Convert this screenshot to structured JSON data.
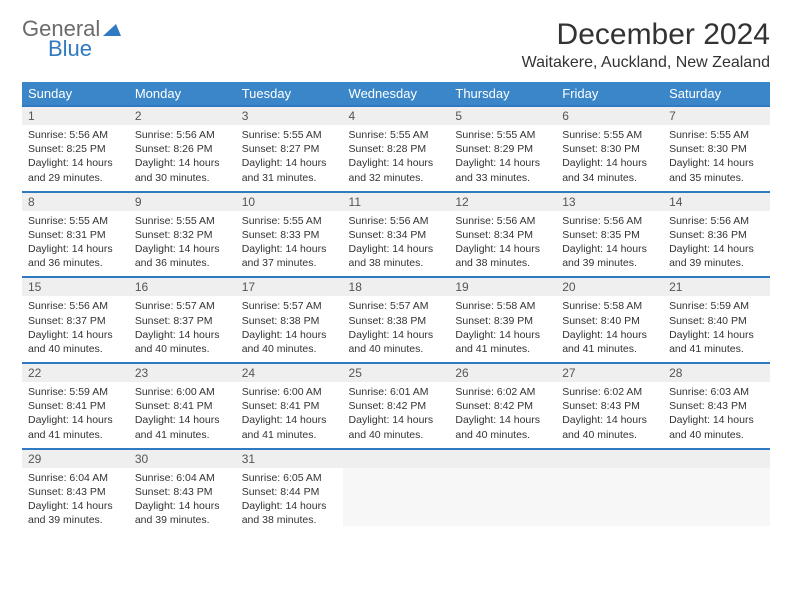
{
  "logo": {
    "word1": "General",
    "word2": "Blue"
  },
  "title": "December 2024",
  "location": "Waitakere, Auckland, New Zealand",
  "weekdays": [
    "Sunday",
    "Monday",
    "Tuesday",
    "Wednesday",
    "Thursday",
    "Friday",
    "Saturday"
  ],
  "header_bg": "#3a86c8",
  "accent_line": "#2f7ac0",
  "daynum_bg": "#efefef",
  "days": [
    {
      "n": "1",
      "sr": "5:56 AM",
      "ss": "8:25 PM",
      "dl": "14 hours and 29 minutes."
    },
    {
      "n": "2",
      "sr": "5:56 AM",
      "ss": "8:26 PM",
      "dl": "14 hours and 30 minutes."
    },
    {
      "n": "3",
      "sr": "5:55 AM",
      "ss": "8:27 PM",
      "dl": "14 hours and 31 minutes."
    },
    {
      "n": "4",
      "sr": "5:55 AM",
      "ss": "8:28 PM",
      "dl": "14 hours and 32 minutes."
    },
    {
      "n": "5",
      "sr": "5:55 AM",
      "ss": "8:29 PM",
      "dl": "14 hours and 33 minutes."
    },
    {
      "n": "6",
      "sr": "5:55 AM",
      "ss": "8:30 PM",
      "dl": "14 hours and 34 minutes."
    },
    {
      "n": "7",
      "sr": "5:55 AM",
      "ss": "8:30 PM",
      "dl": "14 hours and 35 minutes."
    },
    {
      "n": "8",
      "sr": "5:55 AM",
      "ss": "8:31 PM",
      "dl": "14 hours and 36 minutes."
    },
    {
      "n": "9",
      "sr": "5:55 AM",
      "ss": "8:32 PM",
      "dl": "14 hours and 36 minutes."
    },
    {
      "n": "10",
      "sr": "5:55 AM",
      "ss": "8:33 PM",
      "dl": "14 hours and 37 minutes."
    },
    {
      "n": "11",
      "sr": "5:56 AM",
      "ss": "8:34 PM",
      "dl": "14 hours and 38 minutes."
    },
    {
      "n": "12",
      "sr": "5:56 AM",
      "ss": "8:34 PM",
      "dl": "14 hours and 38 minutes."
    },
    {
      "n": "13",
      "sr": "5:56 AM",
      "ss": "8:35 PM",
      "dl": "14 hours and 39 minutes."
    },
    {
      "n": "14",
      "sr": "5:56 AM",
      "ss": "8:36 PM",
      "dl": "14 hours and 39 minutes."
    },
    {
      "n": "15",
      "sr": "5:56 AM",
      "ss": "8:37 PM",
      "dl": "14 hours and 40 minutes."
    },
    {
      "n": "16",
      "sr": "5:57 AM",
      "ss": "8:37 PM",
      "dl": "14 hours and 40 minutes."
    },
    {
      "n": "17",
      "sr": "5:57 AM",
      "ss": "8:38 PM",
      "dl": "14 hours and 40 minutes."
    },
    {
      "n": "18",
      "sr": "5:57 AM",
      "ss": "8:38 PM",
      "dl": "14 hours and 40 minutes."
    },
    {
      "n": "19",
      "sr": "5:58 AM",
      "ss": "8:39 PM",
      "dl": "14 hours and 41 minutes."
    },
    {
      "n": "20",
      "sr": "5:58 AM",
      "ss": "8:40 PM",
      "dl": "14 hours and 41 minutes."
    },
    {
      "n": "21",
      "sr": "5:59 AM",
      "ss": "8:40 PM",
      "dl": "14 hours and 41 minutes."
    },
    {
      "n": "22",
      "sr": "5:59 AM",
      "ss": "8:41 PM",
      "dl": "14 hours and 41 minutes."
    },
    {
      "n": "23",
      "sr": "6:00 AM",
      "ss": "8:41 PM",
      "dl": "14 hours and 41 minutes."
    },
    {
      "n": "24",
      "sr": "6:00 AM",
      "ss": "8:41 PM",
      "dl": "14 hours and 41 minutes."
    },
    {
      "n": "25",
      "sr": "6:01 AM",
      "ss": "8:42 PM",
      "dl": "14 hours and 40 minutes."
    },
    {
      "n": "26",
      "sr": "6:02 AM",
      "ss": "8:42 PM",
      "dl": "14 hours and 40 minutes."
    },
    {
      "n": "27",
      "sr": "6:02 AM",
      "ss": "8:43 PM",
      "dl": "14 hours and 40 minutes."
    },
    {
      "n": "28",
      "sr": "6:03 AM",
      "ss": "8:43 PM",
      "dl": "14 hours and 40 minutes."
    },
    {
      "n": "29",
      "sr": "6:04 AM",
      "ss": "8:43 PM",
      "dl": "14 hours and 39 minutes."
    },
    {
      "n": "30",
      "sr": "6:04 AM",
      "ss": "8:43 PM",
      "dl": "14 hours and 39 minutes."
    },
    {
      "n": "31",
      "sr": "6:05 AM",
      "ss": "8:44 PM",
      "dl": "14 hours and 38 minutes."
    }
  ],
  "labels": {
    "sunrise": "Sunrise: ",
    "sunset": "Sunset: ",
    "daylight": "Daylight: "
  }
}
